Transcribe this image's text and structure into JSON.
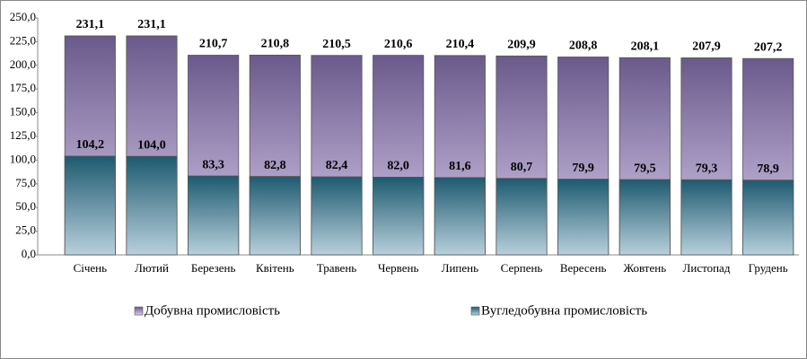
{
  "chart_data": {
    "type": "bar",
    "overlap": true,
    "categories": [
      "Січень",
      "Лютий",
      "Березень",
      "Квітень",
      "Травень",
      "Червень",
      "Липень",
      "Серпень",
      "Вересень",
      "Жовтень",
      "Листопад",
      "Грудень"
    ],
    "series": [
      {
        "name": "Добувна промисловість",
        "color": "#6a5a8c",
        "values": [
          231.1,
          231.1,
          210.7,
          210.8,
          210.5,
          210.6,
          210.4,
          209.9,
          208.8,
          208.1,
          207.9,
          207.2
        ],
        "value_labels": [
          "231,1",
          "231,1",
          "210,7",
          "210,8",
          "210,5",
          "210,6",
          "210,4",
          "209,9",
          "208,8",
          "208,1",
          "207,9",
          "207,2"
        ]
      },
      {
        "name": "Вугледобувна промисловість",
        "color": "#1e5a70",
        "values": [
          104.2,
          104.0,
          83.3,
          82.8,
          82.4,
          82.0,
          81.6,
          80.7,
          79.9,
          79.5,
          79.3,
          78.9
        ],
        "value_labels": [
          "104,2",
          "104,0",
          "83,3",
          "82,8",
          "82,4",
          "82,0",
          "81,6",
          "80,7",
          "79,9",
          "79,5",
          "79,3",
          "78,9"
        ]
      }
    ],
    "ylim": [
      0,
      250
    ],
    "yticks": [
      {
        "value": 0,
        "label": "0,0"
      },
      {
        "value": 25,
        "label": "25,0"
      },
      {
        "value": 50,
        "label": "50,0"
      },
      {
        "value": 75,
        "label": "75,0"
      },
      {
        "value": 100,
        "label": "100,0"
      },
      {
        "value": 125,
        "label": "125,0"
      },
      {
        "value": 150,
        "label": "150,0"
      },
      {
        "value": 175,
        "label": "175,0"
      },
      {
        "value": 200,
        "label": "200,0"
      },
      {
        "value": 225,
        "label": "225,0"
      },
      {
        "value": 250,
        "label": "250,0"
      }
    ],
    "legend": "bottom"
  }
}
